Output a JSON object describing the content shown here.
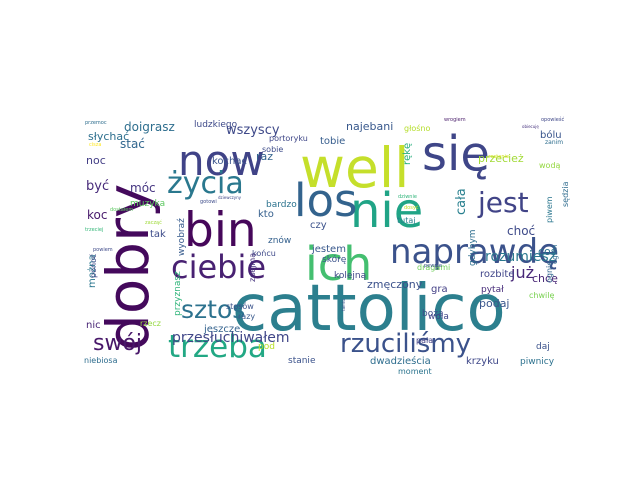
{
  "words": [
    {
      "text": "cattolico",
      "color": "#2c7f8e"
    },
    {
      "text": "dobry",
      "color": "#44095c"
    },
    {
      "text": "well",
      "color": "#c5df2b"
    },
    {
      "text": "się",
      "color": "#3f4688"
    },
    {
      "text": "now",
      "color": "#404387"
    },
    {
      "text": "nie",
      "color": "#20a486"
    },
    {
      "text": "los",
      "color": "#33638d"
    },
    {
      "text": "bin",
      "color": "#46075a"
    },
    {
      "text": "życia",
      "color": "#2a788e"
    },
    {
      "text": "ich",
      "color": "#44bf70"
    },
    {
      "text": "naprawdę",
      "color": "#3b528b"
    },
    {
      "text": "ciebie",
      "color": "#482172"
    },
    {
      "text": "jest",
      "color": "#414487"
    },
    {
      "text": "trzeba",
      "color": "#22a884"
    },
    {
      "text": "rzuciliśmy",
      "color": "#3b528b"
    },
    {
      "text": "sztos",
      "color": "#2c728e"
    },
    {
      "text": "swój",
      "color": "#481769"
    },
    {
      "text": "przesłuchiwałem",
      "color": "#404688"
    },
    {
      "text": "rozumiesz",
      "color": "#2a788e"
    },
    {
      "text": "wszyscy",
      "color": "#3e4989"
    },
    {
      "text": "najebani",
      "color": "#38588c"
    },
    {
      "text": "doigrasz",
      "color": "#2e6e8e"
    },
    {
      "text": "ludzkiego",
      "color": "#3e4a89"
    },
    {
      "text": "tobie",
      "color": "#365d8d"
    },
    {
      "text": "głośno",
      "color": "#b5de2b"
    },
    {
      "text": "bólu",
      "color": "#39558c"
    },
    {
      "text": "słychać",
      "color": "#2e6f8e"
    },
    {
      "text": "stać",
      "color": "#31668e"
    },
    {
      "text": "portoryku",
      "color": "#3f4788"
    },
    {
      "text": "sobie",
      "color": "#3e4c8a"
    },
    {
      "text": "raz",
      "color": "#33638d"
    },
    {
      "text": "noc",
      "color": "#433e85"
    },
    {
      "text": "kochać",
      "color": "#3a548c"
    },
    {
      "text": "przecież",
      "color": "#a2da37"
    },
    {
      "text": "wodą",
      "color": "#95d840"
    },
    {
      "text": "być",
      "color": "#472a7a"
    },
    {
      "text": "móc",
      "color": "#453581"
    },
    {
      "text": "muzyka",
      "color": "#5ec962"
    },
    {
      "text": "bardzo",
      "color": "#2c738e"
    },
    {
      "text": "cała",
      "color": "#277f8e"
    },
    {
      "text": "już",
      "color": "#482878"
    },
    {
      "text": "koc",
      "color": "#481a6c"
    },
    {
      "text": "wyobraź",
      "color": "#375b8d"
    },
    {
      "text": "kto",
      "color": "#355f8d"
    },
    {
      "text": "czy",
      "color": "#3b528b"
    },
    {
      "text": "tutaj",
      "color": "#27808e"
    },
    {
      "text": "gdybym",
      "color": "#2e6e8e"
    },
    {
      "text": "choć",
      "color": "#3e4a89"
    },
    {
      "text": "chcę",
      "color": "#482475"
    },
    {
      "text": "coś",
      "color": "#2d708e"
    },
    {
      "text": "tak",
      "color": "#3e4c8a"
    },
    {
      "text": "znów",
      "color": "#34608d"
    },
    {
      "text": "jestem",
      "color": "#38588c"
    },
    {
      "text": "skórę",
      "color": "#3b528b"
    },
    {
      "text": "końcu",
      "color": "#3e4989"
    },
    {
      "text": "pytał",
      "color": "#472c7a"
    },
    {
      "text": "chwilę",
      "color": "#7ad151"
    },
    {
      "text": "można",
      "color": "#2a768e"
    },
    {
      "text": "zdejmą",
      "color": "#46337e"
    },
    {
      "text": "kolejną",
      "color": "#3f4788"
    },
    {
      "text": "dragami",
      "color": "#6ece58"
    },
    {
      "text": "rozbite",
      "color": "#404588"
    },
    {
      "text": "zmęczony",
      "color": "#3b518b"
    },
    {
      "text": "podaj",
      "color": "#39558c"
    },
    {
      "text": "nic",
      "color": "#482576"
    },
    {
      "text": "rzecz",
      "color": "#95d840"
    },
    {
      "text": "jeszcze",
      "color": "#33628d"
    },
    {
      "text": "boża",
      "color": "#3d4e8a"
    },
    {
      "text": "pod",
      "color": "#b8de29"
    },
    {
      "text": "pala",
      "color": "#424086"
    },
    {
      "text": "stosów",
      "color": "#3a538b"
    },
    {
      "text": "razy",
      "color": "#38598c"
    },
    {
      "text": "stanie",
      "color": "#3b528b"
    },
    {
      "text": "dwadzieścia",
      "color": "#2e6d8e"
    },
    {
      "text": "krzyku",
      "color": "#3f4889"
    },
    {
      "text": "daj",
      "color": "#3b528b"
    },
    {
      "text": "piwnicy",
      "color": "#2c718e"
    },
    {
      "text": "niebiosa",
      "color": "#2e6d8e"
    },
    {
      "text": "ogień",
      "color": "#2f6b8e"
    },
    {
      "text": "ognie",
      "color": "#31678e"
    },
    {
      "text": "gra",
      "color": "#423f85"
    },
    {
      "text": "wola",
      "color": "#404588"
    },
    {
      "text": "moment",
      "color": "#2b748e"
    },
    {
      "text": "sędzia",
      "color": "#2f6c8e"
    },
    {
      "text": "piwem",
      "color": "#2a768e"
    },
    {
      "text": "rękę",
      "color": "#29af7f"
    },
    {
      "text": "pewnie",
      "color": "#3b528b"
    },
    {
      "text": "przyznasz",
      "color": "#31b57b"
    },
    {
      "text": "ponoć",
      "color": "#3f4788"
    },
    {
      "text": "wrogiem",
      "color": "#4a1e6b"
    },
    {
      "text": "opowieść",
      "color": "#3f4788"
    },
    {
      "text": "zanim",
      "color": "#2e6e8e"
    },
    {
      "text": "dosyć",
      "color": "#c2df23"
    },
    {
      "text": "cisza",
      "color": "#fde725"
    },
    {
      "text": "gotowi",
      "color": "#3e4c8a"
    },
    {
      "text": "trzeciej",
      "color": "#35b779"
    },
    {
      "text": "dziwnie",
      "color": "#31b57b"
    },
    {
      "text": "zacząć",
      "color": "#9fda3a"
    },
    {
      "text": "tamto",
      "color": "#3b528b"
    },
    {
      "text": "zostanie",
      "color": "#d2e21b"
    },
    {
      "text": "powiem",
      "color": "#3e4989"
    },
    {
      "text": "przemoc",
      "color": "#2e6e8e"
    },
    {
      "text": "dostałem",
      "color": "#5ec962"
    },
    {
      "text": "dziewczyny",
      "color": "#3f4788"
    },
    {
      "text": "obiecuję",
      "color": "#46337e"
    }
  ]
}
